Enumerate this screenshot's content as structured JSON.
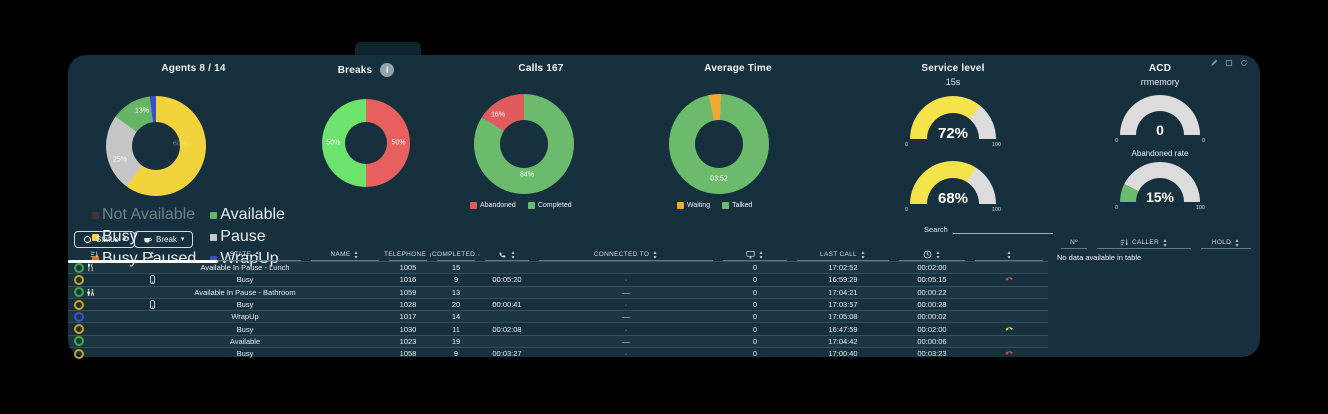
{
  "panel": {
    "icons": [
      {
        "name": "edit"
      },
      {
        "name": "fullscreen"
      },
      {
        "name": "refresh"
      }
    ]
  },
  "charts": {
    "agents": {
      "title": "Agents 8 / 14",
      "type": "donut",
      "start_angle": -90,
      "segments": [
        {
          "label": "Busy",
          "value": 60,
          "color": "#f2d33c"
        },
        {
          "label": "Pause",
          "value": 25,
          "color": "#c6c6c6"
        },
        {
          "label": "Available",
          "value": 13,
          "color": "#66b566"
        },
        {
          "label": "WrapUp",
          "value": 2,
          "color": "#3950cc"
        }
      ],
      "slice_labels": [
        {
          "text": "13%"
        },
        {
          "text": "25%"
        },
        {
          "text": "60%"
        }
      ],
      "legend": [
        {
          "label": "Not Available",
          "color": "#7c3a3a",
          "disabled": true
        },
        {
          "label": "Available",
          "color": "#66b566"
        },
        {
          "label": "Busy",
          "color": "#f2d33c"
        },
        {
          "label": "Pause",
          "color": "#c6c6c6"
        },
        {
          "label": "Busy Paused",
          "color": "#e2711d"
        },
        {
          "label": "WrapUp",
          "color": "#3950cc"
        }
      ]
    },
    "breaks": {
      "title": "Breaks",
      "info_label": "i",
      "type": "donut",
      "start_angle": -90,
      "segments": [
        {
          "label": "",
          "value": 50,
          "color": "#e85f5f"
        },
        {
          "label": "",
          "value": 50,
          "color": "#6de36d"
        }
      ],
      "slice_labels": [
        {
          "text": "50%"
        },
        {
          "text": "50%"
        }
      ]
    },
    "calls": {
      "title": "Calls 167",
      "type": "donut",
      "start_angle": -90,
      "segments": [
        {
          "label": "Completed",
          "value": 84,
          "color": "#6cba6c"
        },
        {
          "label": "Abandoned",
          "value": 16,
          "color": "#e05c5c"
        }
      ],
      "slice_labels": [
        {
          "text": "16%"
        },
        {
          "text": "84%"
        }
      ],
      "legend": [
        {
          "label": "Abandoned",
          "color": "#e05c5c"
        },
        {
          "label": "Completed",
          "color": "#6cba6c"
        }
      ]
    },
    "average_time": {
      "title": "Average Time",
      "type": "donut",
      "start_angle": -102,
      "segments": [
        {
          "label": "Waiting",
          "value": 4,
          "color": "#f0a832"
        },
        {
          "label": "Talked",
          "value": 96,
          "color": "#6cba6c"
        }
      ],
      "slice_labels": [
        {
          "text": "03:52"
        }
      ],
      "legend": [
        {
          "label": "Waiting",
          "color": "#f0a832"
        },
        {
          "label": "Talked",
          "color": "#6cba6c"
        }
      ]
    },
    "service_level": {
      "title": "Service level",
      "subtitle": "15s",
      "type": "gauge",
      "gauges": [
        {
          "value": 72,
          "value_label": "72%",
          "color": "#f5e34b",
          "track": "#dcdcdc",
          "min_label": "0",
          "max_label": "100"
        },
        {
          "value": 68,
          "value_label": "68%",
          "color": "#f5e34b",
          "track": "#dcdcdc",
          "min_label": "0",
          "max_label": "100"
        }
      ]
    },
    "acd": {
      "title": "ACD",
      "subtitle": "rrmemory",
      "type": "gauge",
      "gauges": [
        {
          "label": "",
          "value": 0,
          "value_label": "0",
          "color": "#6cba6c",
          "track": "#dcdcdc",
          "min_label": "0",
          "max_label": "0"
        },
        {
          "label": "Abandoned rate",
          "value": 15,
          "value_label": "15%",
          "color": "#6cba6c",
          "track": "#dcdcdc",
          "min_label": "0",
          "max_label": "100"
        }
      ]
    }
  },
  "filters": {
    "status": {
      "label": "Status"
    },
    "break": {
      "label": "Break"
    }
  },
  "search": {
    "label": "Search",
    "value": ""
  },
  "agents_table": {
    "columns": [
      {
        "label": "",
        "icon": "sort-amount",
        "sort": false
      },
      {
        "label": "",
        "icon": "",
        "sort": true
      },
      {
        "label": "STATE",
        "icon": "",
        "sort": true
      },
      {
        "label": "NAME",
        "icon": "",
        "sort": true
      },
      {
        "label": "TELEPHONE",
        "icon": "",
        "sort": true
      },
      {
        "label": "COMPLETED",
        "icon": "",
        "sort": true
      },
      {
        "label": "",
        "icon": "phone",
        "sort": true
      },
      {
        "label": "CONNECTED TO",
        "icon": "",
        "sort": true
      },
      {
        "label": "",
        "icon": "monitor",
        "sort": true
      },
      {
        "label": "LAST CALL",
        "icon": "",
        "sort": true
      },
      {
        "label": "",
        "icon": "clock",
        "sort": true
      },
      {
        "label": "",
        "icon": "",
        "sort": true
      }
    ],
    "rows": [
      {
        "status_color": "#3fa944",
        "status_icon": "utensils",
        "device_icon": "",
        "state": "Available In Pause - Lunch",
        "name": "",
        "telephone": "1005",
        "completed": "15",
        "call_time": "",
        "connected": "",
        "monitor": "0",
        "last_call": "17:02:52",
        "elapsed": "00:02:00",
        "hangup_color": ""
      },
      {
        "status_color": "#c9a21b",
        "status_icon": "",
        "device_icon": "mobile",
        "state": "Busy",
        "name": "",
        "telephone": "1016",
        "completed": "9",
        "call_time": "00:05:20",
        "connected": "·",
        "monitor": "0",
        "last_call": "16:59:29",
        "elapsed": "00:05:15",
        "hangup_color": "#d9534f"
      },
      {
        "status_color": "#3fa944",
        "status_icon": "restroom",
        "device_icon": "",
        "state": "Available In Pause - Bathroom",
        "name": "",
        "telephone": "1059",
        "completed": "13",
        "call_time": "",
        "connected": "—",
        "monitor": "0",
        "last_call": "17:04:21",
        "elapsed": "00:00:22",
        "hangup_color": ""
      },
      {
        "status_color": "#c9a21b",
        "status_icon": "",
        "device_icon": "mobile",
        "state": "Busy",
        "name": "",
        "telephone": "1028",
        "completed": "20",
        "call_time": "00:00:41",
        "connected": "·",
        "monitor": "0",
        "last_call": "17:03:57",
        "elapsed": "00:00:28",
        "hangup_color": ""
      },
      {
        "status_color": "#3b54c4",
        "status_icon": "",
        "device_icon": "",
        "state": "WrapUp",
        "name": "",
        "telephone": "1017",
        "completed": "14",
        "call_time": "",
        "connected": "—",
        "monitor": "0",
        "last_call": "17:05:08",
        "elapsed": "00:00:02",
        "hangup_color": ""
      },
      {
        "status_color": "#c9a21b",
        "status_icon": "",
        "device_icon": "",
        "state": "Busy",
        "name": "",
        "telephone": "1030",
        "completed": "11",
        "call_time": "00:02:08",
        "connected": "·",
        "monitor": "0",
        "last_call": "16:47:59",
        "elapsed": "00:02:00",
        "hangup_color": "#e0d531"
      },
      {
        "status_color": "#3fa944",
        "status_icon": "",
        "device_icon": "",
        "state": "Available",
        "name": "",
        "telephone": "1023",
        "completed": "19",
        "call_time": "",
        "connected": "—",
        "monitor": "0",
        "last_call": "17:04:42",
        "elapsed": "00:00:06",
        "hangup_color": ""
      },
      {
        "status_color": "#c9a21b",
        "status_icon": "",
        "device_icon": "",
        "state": "Busy",
        "name": "",
        "telephone": "1058",
        "completed": "9",
        "call_time": "00:03:27",
        "connected": "·",
        "monitor": "0",
        "last_call": "17:00:40",
        "elapsed": "00:03:23",
        "hangup_color": "#d9534f"
      }
    ]
  },
  "calls_table": {
    "columns": [
      "Nº",
      "CALLER",
      "HOLD"
    ],
    "empty_text": "No data available in table"
  }
}
